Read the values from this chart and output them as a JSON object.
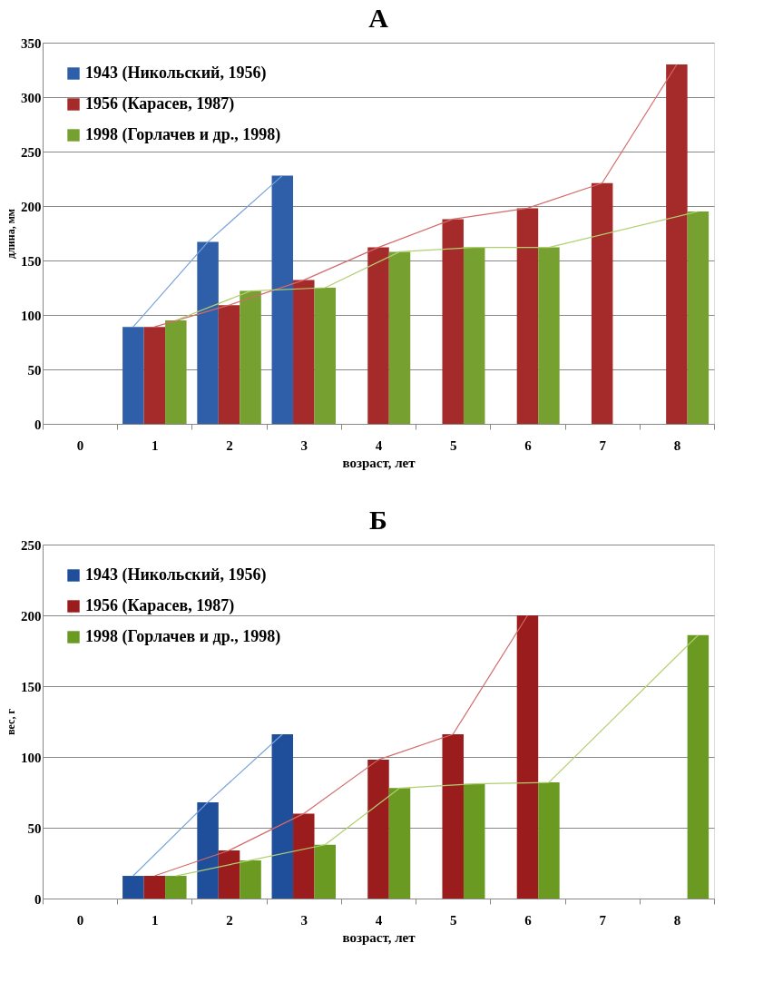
{
  "chart_data": [
    {
      "type": "bar",
      "title": "А",
      "xlabel": "возраст, лет",
      "ylabel": "длина, мм",
      "categories": [
        "0",
        "1",
        "2",
        "3",
        "4",
        "5",
        "6",
        "7",
        "8"
      ],
      "ylim": [
        0,
        350
      ],
      "yticks": [
        0,
        50,
        100,
        150,
        200,
        250,
        300,
        350
      ],
      "grid": "y",
      "legend": "top left",
      "series": [
        {
          "name": "1943 (Никольский, 1956)",
          "color": "#2e5fa8",
          "values": [
            null,
            89,
            167,
            228,
            null,
            null,
            null,
            null,
            null
          ]
        },
        {
          "name": "1956 (Карасев, 1987)",
          "color": "#a52a2a",
          "values": [
            null,
            89,
            109,
            132,
            162,
            188,
            198,
            221,
            330
          ]
        },
        {
          "name": "1998 (Горлачев и др., 1998)",
          "color": "#76a030",
          "values": [
            null,
            95,
            122,
            125,
            158,
            162,
            162,
            null,
            195
          ]
        },
        {
          "type": "line",
          "color": "#7aa3dc",
          "values": [
            null,
            89,
            167,
            228,
            null,
            null,
            null,
            null,
            null
          ]
        },
        {
          "type": "line",
          "color": "#d46a6a",
          "values": [
            null,
            89,
            109,
            132,
            162,
            188,
            198,
            221,
            330
          ]
        },
        {
          "type": "line",
          "color": "#b0d070",
          "values": [
            null,
            95,
            122,
            125,
            158,
            162,
            162,
            null,
            195
          ]
        }
      ]
    },
    {
      "type": "bar",
      "title": "Б",
      "xlabel": "возраст, лет",
      "ylabel": "вес, г",
      "categories": [
        "0",
        "1",
        "2",
        "3",
        "4",
        "5",
        "6",
        "7",
        "8"
      ],
      "ylim": [
        0,
        250
      ],
      "yticks": [
        0,
        50,
        100,
        150,
        200,
        250
      ],
      "grid": "y",
      "legend": "top left",
      "series": [
        {
          "name": "1943 (Никольский, 1956)",
          "color": "#1f4e9a",
          "values": [
            null,
            16,
            68,
            116,
            null,
            null,
            null,
            null,
            null
          ]
        },
        {
          "name": "1956 (Карасев, 1987)",
          "color": "#9b1c1c",
          "values": [
            null,
            16,
            34,
            60,
            98,
            116,
            200,
            null,
            null
          ]
        },
        {
          "name": "1998 (Горлачев и др., 1998)",
          "color": "#6a9a22",
          "values": [
            null,
            16,
            27,
            38,
            78,
            81,
            82,
            null,
            186
          ]
        },
        {
          "type": "line",
          "color": "#7aa3dc",
          "values": [
            null,
            16,
            68,
            116,
            null,
            null,
            null,
            null,
            null
          ]
        },
        {
          "type": "line",
          "color": "#d46a6a",
          "values": [
            null,
            16,
            34,
            60,
            98,
            116,
            200,
            null,
            null
          ]
        },
        {
          "type": "line",
          "color": "#b0d070",
          "values": [
            null,
            16,
            27,
            38,
            78,
            81,
            82,
            null,
            186
          ]
        }
      ]
    }
  ]
}
